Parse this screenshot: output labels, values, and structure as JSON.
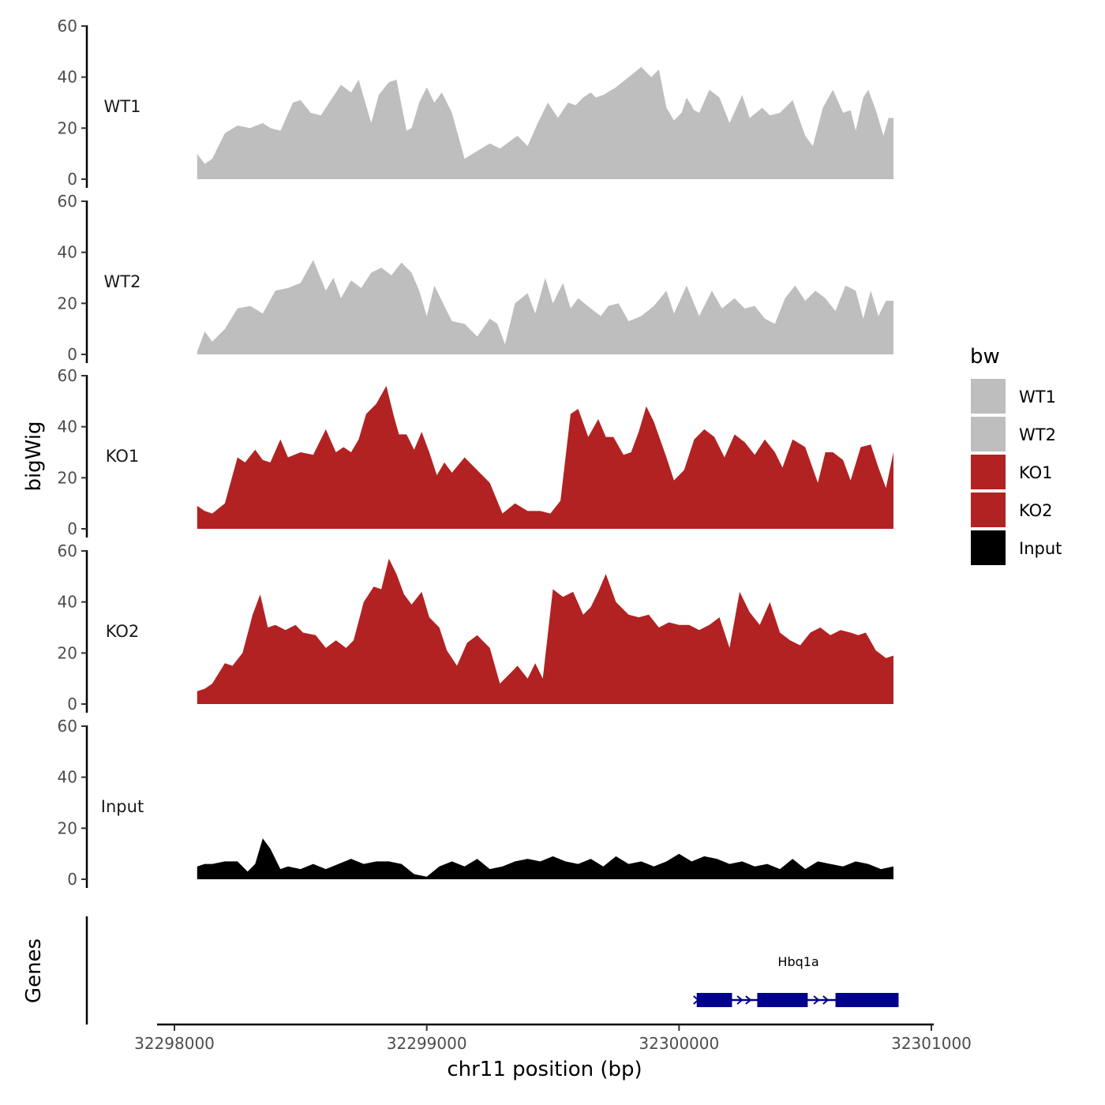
{
  "chart_data": {
    "type": "area",
    "xlabel": "chr11 position (bp)",
    "ylabel": "bigWig",
    "genes_label": "Genes",
    "x_range": [
      32297940,
      32301000
    ],
    "x_ticks": [
      32298000,
      32299000,
      32300000,
      32301000
    ],
    "x_tick_labels": [
      "32298000",
      "32299000",
      "32300000",
      "32301000"
    ],
    "y_range": [
      0,
      60
    ],
    "y_ticks": [
      0,
      20,
      40,
      60
    ],
    "y_tick_labels": [
      "0",
      "20",
      "40",
      "60"
    ],
    "legend": {
      "title": "bw",
      "position": "right",
      "entries": [
        {
          "label": "WT1",
          "color": "#bebebe"
        },
        {
          "label": "WT2",
          "color": "#bebebe"
        },
        {
          "label": "KO1",
          "color": "#b22222"
        },
        {
          "label": "KO2",
          "color": "#b22222"
        },
        {
          "label": "Input",
          "color": "#000000"
        }
      ]
    },
    "series": [
      {
        "name": "WT1",
        "color": "#bebebe",
        "x": [
          32298090,
          32298120,
          32298150,
          32298200,
          32298250,
          32298300,
          32298350,
          32298380,
          32298420,
          32298470,
          32298500,
          32298540,
          32298580,
          32298640,
          32298660,
          32298700,
          32298730,
          32298780,
          32298810,
          32298850,
          32298880,
          32298920,
          32298940,
          32298970,
          32299000,
          32299030,
          32299060,
          32299100,
          32299150,
          32299200,
          32299250,
          32299290,
          32299360,
          32299400,
          32299440,
          32299480,
          32299520,
          32299560,
          32299590,
          32299620,
          32299650,
          32299670,
          32299700,
          32299750,
          32299800,
          32299850,
          32299890,
          32299920,
          32299950,
          32299980,
          32300010,
          32300030,
          32300060,
          32300080,
          32300120,
          32300160,
          32300200,
          32300250,
          32300280,
          32300330,
          32300360,
          32300400,
          32300450,
          32300500,
          32300530,
          32300570,
          32300610,
          32300650,
          32300680,
          32300700,
          32300730,
          32300750,
          32300780,
          32300810,
          32300830,
          32300850
        ],
        "values": [
          10,
          6,
          8,
          18,
          21,
          20,
          22,
          20,
          19,
          30,
          31,
          26,
          25,
          34,
          37,
          34,
          39,
          22,
          33,
          38,
          39,
          19,
          20,
          30,
          36,
          30,
          34,
          26,
          8,
          11,
          14,
          12,
          17,
          13,
          22,
          30,
          24,
          30,
          29,
          32,
          34,
          32,
          33,
          36,
          40,
          44,
          40,
          43,
          28,
          23,
          26,
          32,
          27,
          26,
          35,
          32,
          22,
          33,
          24,
          28,
          25,
          26,
          31,
          17,
          13,
          28,
          35,
          26,
          27,
          19,
          32,
          35,
          27,
          17,
          24,
          24
        ]
      },
      {
        "name": "WT2",
        "color": "#bebebe",
        "x": [
          32298090,
          32298120,
          32298150,
          32298200,
          32298250,
          32298300,
          32298350,
          32298400,
          32298450,
          32298500,
          32298550,
          32298600,
          32298630,
          32298660,
          32298700,
          32298740,
          32298780,
          32298820,
          32298860,
          32298900,
          32298940,
          32298970,
          32299000,
          32299030,
          32299060,
          32299100,
          32299150,
          32299200,
          32299250,
          32299280,
          32299310,
          32299350,
          32299400,
          32299430,
          32299470,
          32299500,
          32299540,
          32299570,
          32299600,
          32299650,
          32299690,
          32299720,
          32299760,
          32299800,
          32299850,
          32299900,
          32299950,
          32299980,
          32300030,
          32300080,
          32300130,
          32300170,
          32300220,
          32300260,
          32300300,
          32300340,
          32300380,
          32300420,
          32300460,
          32300500,
          32300540,
          32300580,
          32300620,
          32300660,
          32300700,
          32300730,
          32300760,
          32300790,
          32300820,
          32300850
        ],
        "values": [
          1,
          9,
          5,
          10,
          18,
          19,
          16,
          25,
          26,
          28,
          37,
          25,
          30,
          22,
          29,
          26,
          32,
          34,
          31,
          36,
          32,
          25,
          15,
          27,
          21,
          13,
          12,
          7,
          14,
          12,
          4,
          20,
          24,
          16,
          30,
          20,
          28,
          18,
          22,
          18,
          15,
          19,
          20,
          13,
          15,
          19,
          25,
          16,
          27,
          15,
          25,
          18,
          22,
          18,
          19,
          14,
          12,
          22,
          27,
          21,
          25,
          22,
          17,
          27,
          25,
          14,
          25,
          15,
          21,
          21
        ]
      },
      {
        "name": "KO1",
        "color": "#b22222",
        "x": [
          32298090,
          32298120,
          32298150,
          32298200,
          32298250,
          32298280,
          32298320,
          32298350,
          32298380,
          32298420,
          32298450,
          32298500,
          32298550,
          32298600,
          32298640,
          32298670,
          32298700,
          32298730,
          32298760,
          32298800,
          32298840,
          32298870,
          32298890,
          32298920,
          32298950,
          32298980,
          32299010,
          32299040,
          32299070,
          32299100,
          32299150,
          32299200,
          32299250,
          32299300,
          32299350,
          32299400,
          32299450,
          32299490,
          32299530,
          32299570,
          32299600,
          32299640,
          32299680,
          32299710,
          32299740,
          32299780,
          32299810,
          32299840,
          32299870,
          32299900,
          32299950,
          32299980,
          32300020,
          32300060,
          32300100,
          32300140,
          32300180,
          32300220,
          32300260,
          32300300,
          32300340,
          32300380,
          32300410,
          32300450,
          32300500,
          32300550,
          32300580,
          32300610,
          32300650,
          32300680,
          32300720,
          32300760,
          32300790,
          32300820,
          32300850
        ],
        "values": [
          9,
          7,
          6,
          10,
          28,
          26,
          31,
          27,
          26,
          35,
          28,
          30,
          29,
          39,
          30,
          32,
          30,
          35,
          45,
          49,
          56,
          44,
          37,
          37,
          31,
          38,
          30,
          21,
          26,
          22,
          28,
          23,
          18,
          6,
          10,
          7,
          7,
          6,
          11,
          45,
          47,
          36,
          43,
          36,
          36,
          29,
          30,
          38,
          48,
          42,
          28,
          19,
          23,
          35,
          39,
          36,
          28,
          37,
          34,
          29,
          35,
          30,
          24,
          35,
          32,
          18,
          30,
          30,
          27,
          19,
          32,
          33,
          24,
          16,
          30
        ]
      },
      {
        "name": "KO2",
        "color": "#b22222",
        "x": [
          32298090,
          32298120,
          32298150,
          32298200,
          32298230,
          32298270,
          32298310,
          32298340,
          32298370,
          32298400,
          32298440,
          32298480,
          32298510,
          32298560,
          32298600,
          32298640,
          32298680,
          32298710,
          32298750,
          32298790,
          32298820,
          32298850,
          32298880,
          32298910,
          32298940,
          32298980,
          32299010,
          32299050,
          32299080,
          32299120,
          32299160,
          32299200,
          32299250,
          32299290,
          32299330,
          32299360,
          32299400,
          32299430,
          32299460,
          32299500,
          32299540,
          32299580,
          32299620,
          32299650,
          32299680,
          32299710,
          32299750,
          32299800,
          32299840,
          32299880,
          32299920,
          32299960,
          32300000,
          32300040,
          32300080,
          32300120,
          32300160,
          32300200,
          32300240,
          32300280,
          32300320,
          32300360,
          32300400,
          32300440,
          32300480,
          32300520,
          32300560,
          32300600,
          32300640,
          32300680,
          32300710,
          32300740,
          32300780,
          32300820,
          32300850
        ],
        "values": [
          5,
          6,
          8,
          16,
          15,
          20,
          35,
          43,
          30,
          31,
          29,
          31,
          28,
          27,
          22,
          25,
          22,
          25,
          40,
          46,
          45,
          57,
          51,
          43,
          39,
          44,
          34,
          30,
          21,
          15,
          24,
          27,
          22,
          8,
          12,
          15,
          10,
          16,
          10,
          45,
          42,
          44,
          35,
          38,
          44,
          51,
          40,
          35,
          34,
          35,
          30,
          32,
          31,
          31,
          29,
          31,
          34,
          22,
          44,
          36,
          31,
          40,
          28,
          25,
          23,
          28,
          30,
          27,
          29,
          28,
          27,
          28,
          21,
          18,
          19
        ]
      },
      {
        "name": "Input",
        "color": "#000000",
        "x": [
          32298090,
          32298120,
          32298150,
          32298200,
          32298250,
          32298290,
          32298320,
          32298350,
          32298380,
          32298420,
          32298450,
          32298500,
          32298550,
          32298600,
          32298650,
          32298700,
          32298750,
          32298800,
          32298850,
          32298900,
          32298950,
          32299000,
          32299050,
          32299100,
          32299150,
          32299200,
          32299250,
          32299300,
          32299350,
          32299400,
          32299450,
          32299500,
          32299550,
          32299600,
          32299650,
          32299700,
          32299750,
          32299800,
          32299850,
          32299900,
          32299950,
          32300000,
          32300050,
          32300100,
          32300150,
          32300200,
          32300250,
          32300300,
          32300350,
          32300400,
          32300450,
          32300500,
          32300550,
          32300600,
          32300650,
          32300700,
          32300750,
          32300800,
          32300850
        ],
        "values": [
          5,
          6,
          6,
          7,
          7,
          3,
          6,
          16,
          12,
          4,
          5,
          4,
          6,
          4,
          6,
          8,
          6,
          7,
          7,
          6,
          2,
          1,
          5,
          7,
          5,
          8,
          4,
          5,
          7,
          8,
          7,
          9,
          7,
          6,
          8,
          5,
          9,
          6,
          7,
          5,
          7,
          10,
          7,
          9,
          8,
          6,
          7,
          5,
          6,
          4,
          8,
          4,
          7,
          6,
          5,
          7,
          6,
          4,
          5
        ]
      }
    ],
    "gene": {
      "name": "Hbq1a",
      "start": 32300070,
      "end": 32300870,
      "color": "#00008b",
      "exons": [
        [
          32300070,
          32300210
        ],
        [
          32300310,
          32300510
        ],
        [
          32300620,
          32300870
        ]
      ]
    }
  }
}
